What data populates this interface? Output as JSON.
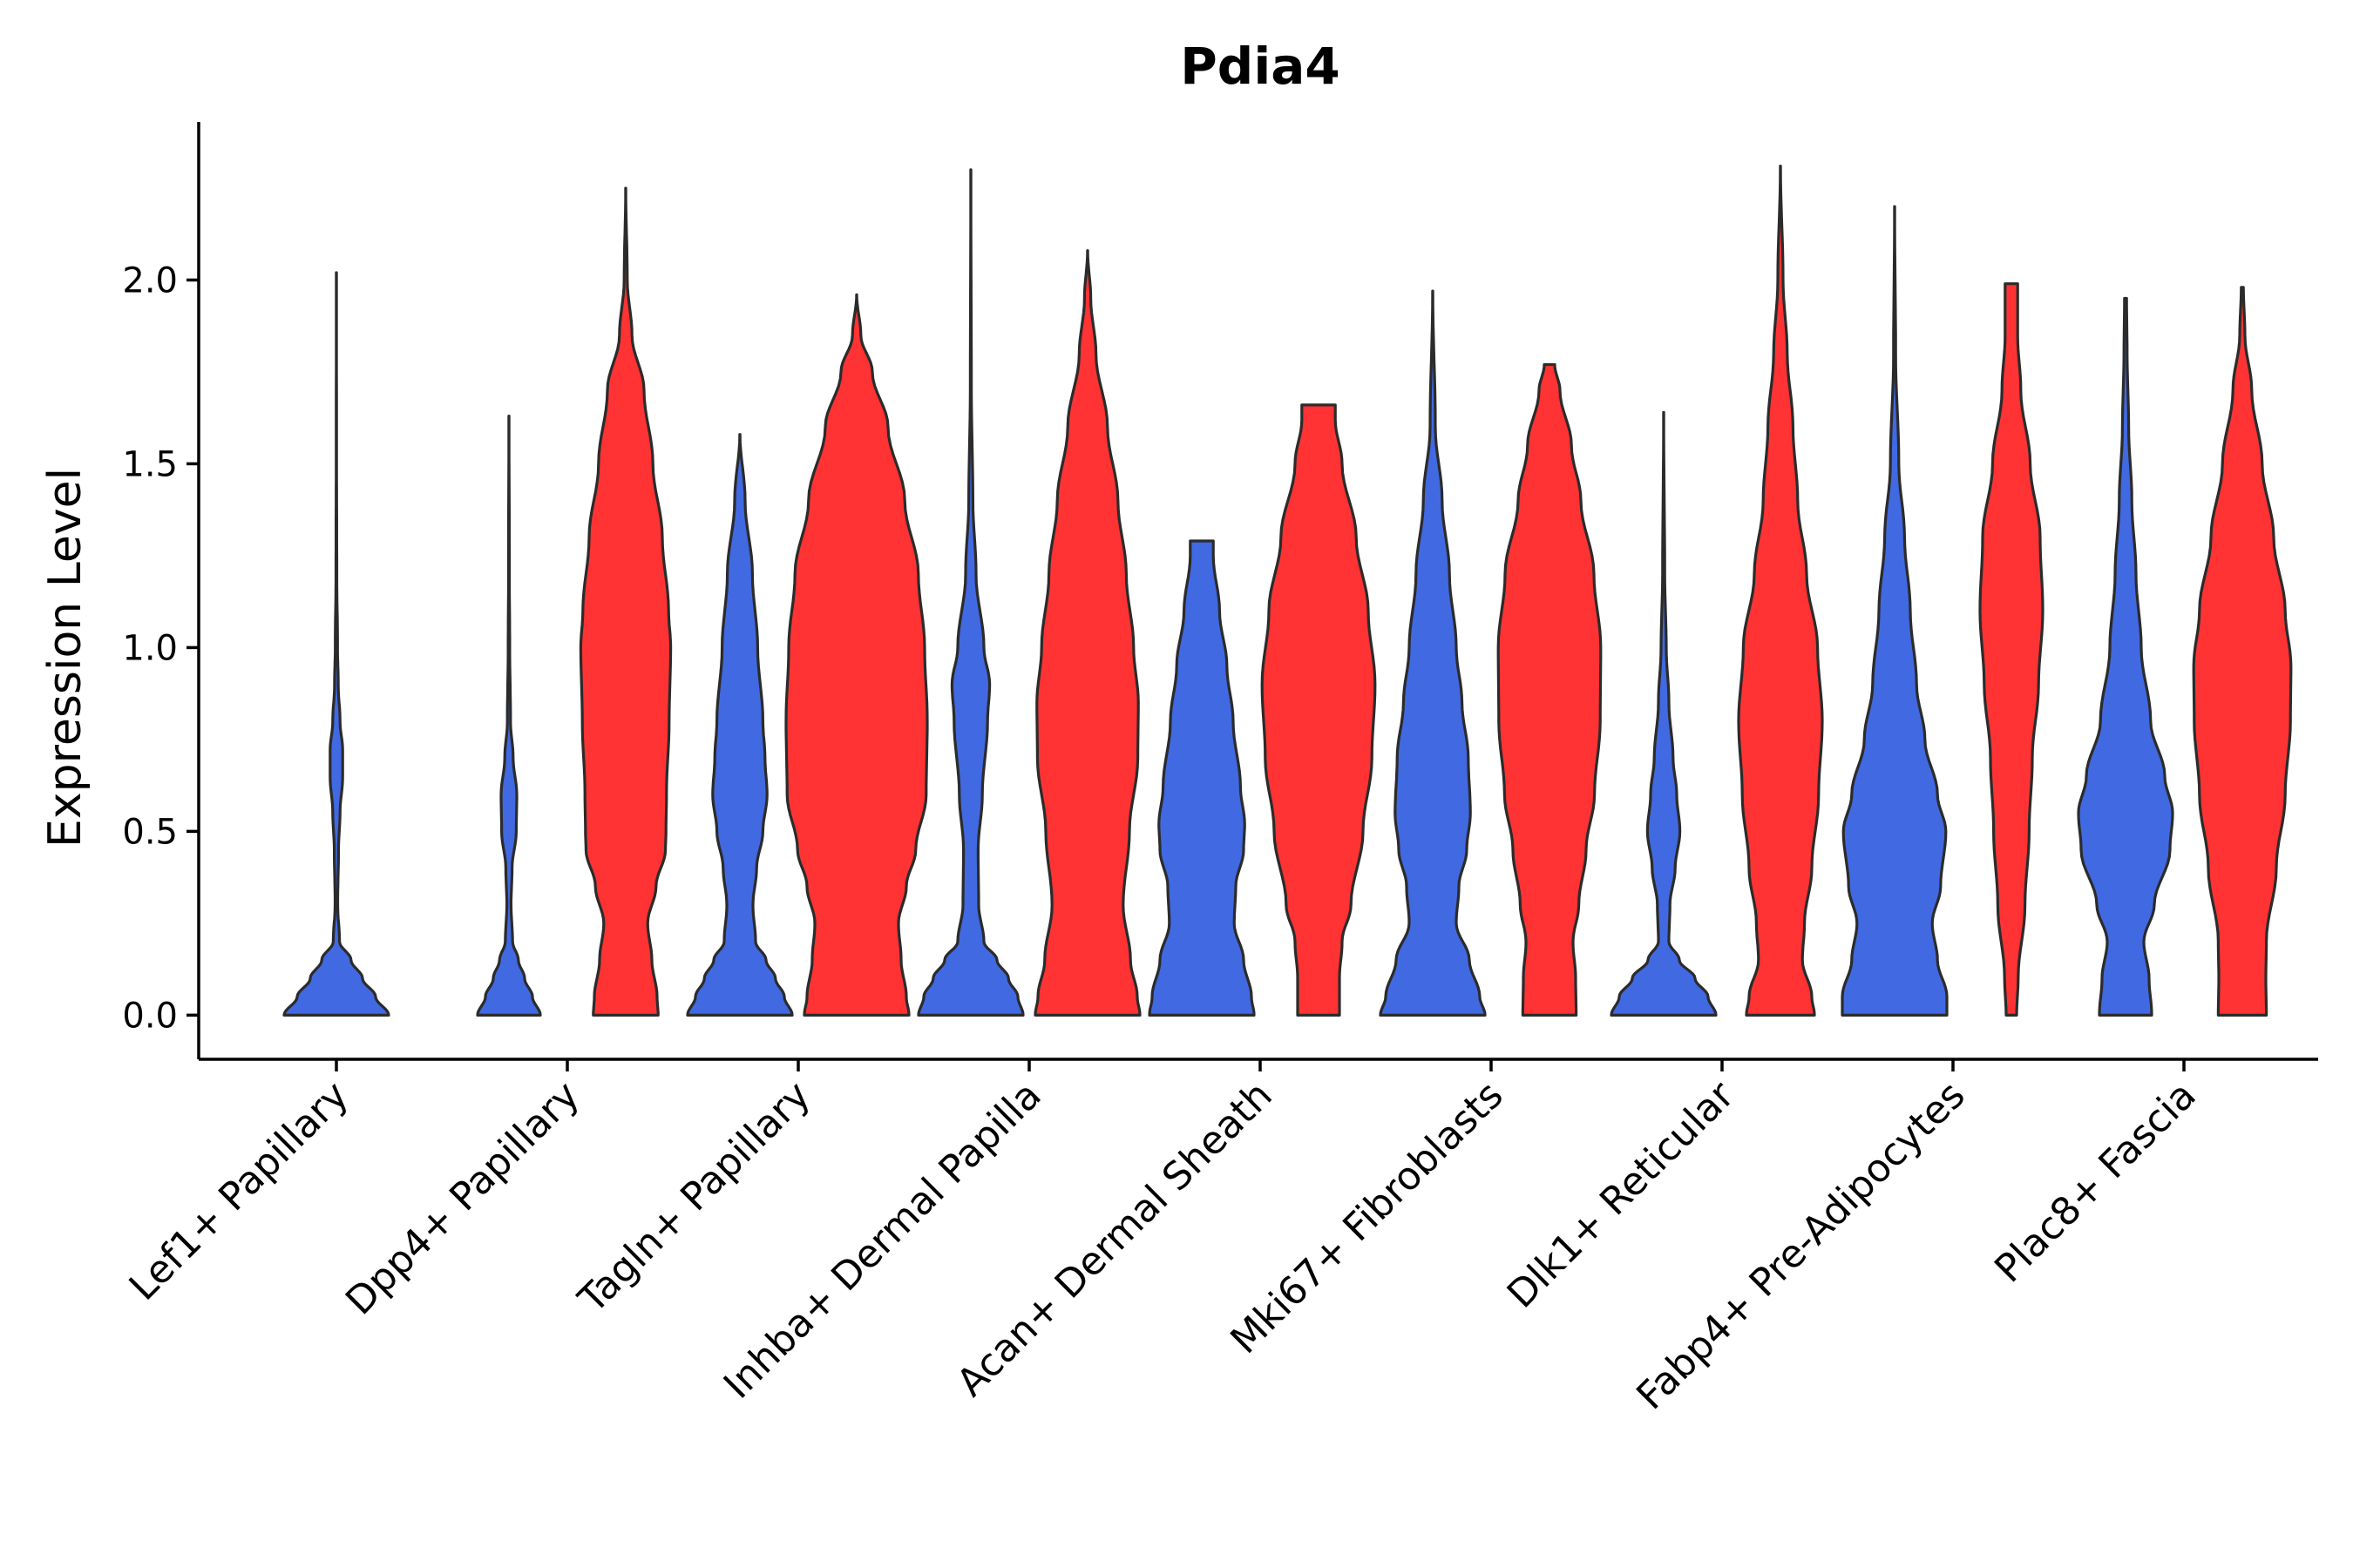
{
  "chart_data": {
    "type": "violin",
    "title": "Pdia4",
    "xlabel": "",
    "ylabel": "Expression Level",
    "ylim": [
      -0.12,
      2.43
    ],
    "yticks": [
      "0.0",
      "0.5",
      "1.0",
      "1.5",
      "2.0"
    ],
    "categories": [
      "Lef1+ Papillary",
      "Dpp4+ Papillary",
      "Tagln+ Papillary",
      "Inhba+ Dermal Papilla",
      "Acan+ Dermal Sheath",
      "Mki67+ Fibroblasts",
      "Dlk1+ Reticular",
      "Fabp4+ Pre-Adipocytes",
      "Plac8+ Fascia"
    ],
    "colors": {
      "group1": "#4169E1",
      "group2": "#FF3333"
    },
    "violins": [
      {
        "category": "Lef1+ Papillary",
        "color": "#4169E1",
        "ymin": 0,
        "ymax": 2.02,
        "profile": [
          [
            0,
            1
          ],
          [
            0.05,
            0.75
          ],
          [
            0.1,
            0.5
          ],
          [
            0.15,
            0.28
          ],
          [
            0.2,
            0.06
          ],
          [
            0.3,
            0.025
          ],
          [
            0.45,
            0.04
          ],
          [
            0.55,
            0.07
          ],
          [
            0.65,
            0.12
          ],
          [
            0.72,
            0.12
          ],
          [
            0.8,
            0.07
          ],
          [
            0.9,
            0.035
          ],
          [
            1.0,
            0.022
          ],
          [
            1.2,
            0.008
          ],
          [
            1.5,
            0.004
          ],
          [
            2.02,
            0.001
          ]
        ]
      },
      {
        "category": "Dpp4+ Papillary",
        "color": "#4169E1",
        "ymin": 0,
        "ymax": 1.63,
        "profile": [
          [
            0,
            0.6
          ],
          [
            0.05,
            0.45
          ],
          [
            0.1,
            0.3
          ],
          [
            0.15,
            0.18
          ],
          [
            0.2,
            0.07
          ],
          [
            0.3,
            0.04
          ],
          [
            0.4,
            0.06
          ],
          [
            0.5,
            0.14
          ],
          [
            0.6,
            0.15
          ],
          [
            0.7,
            0.08
          ],
          [
            0.8,
            0.03
          ],
          [
            1.0,
            0.015
          ],
          [
            1.2,
            0.008
          ],
          [
            1.63,
            0.001
          ]
        ]
      },
      {
        "category": "Dpp4+ Papillary",
        "color": "#FF3333",
        "ymin": 0,
        "ymax": 2.25,
        "profile": [
          [
            0,
            0.62
          ],
          [
            0.05,
            0.6
          ],
          [
            0.15,
            0.5
          ],
          [
            0.25,
            0.42
          ],
          [
            0.35,
            0.58
          ],
          [
            0.45,
            0.76
          ],
          [
            0.5,
            0.77
          ],
          [
            0.6,
            0.78
          ],
          [
            0.8,
            0.83
          ],
          [
            1.0,
            0.86
          ],
          [
            1.1,
            0.82
          ],
          [
            1.3,
            0.7
          ],
          [
            1.5,
            0.52
          ],
          [
            1.7,
            0.35
          ],
          [
            1.85,
            0.12
          ],
          [
            2.0,
            0.03
          ],
          [
            2.25,
            0.001
          ]
        ]
      },
      {
        "category": "Tagln+ Papillary",
        "color": "#4169E1",
        "ymin": 0,
        "ymax": 1.58,
        "profile": [
          [
            0,
            1
          ],
          [
            0.05,
            0.85
          ],
          [
            0.1,
            0.68
          ],
          [
            0.15,
            0.5
          ],
          [
            0.2,
            0.3
          ],
          [
            0.3,
            0.25
          ],
          [
            0.4,
            0.32
          ],
          [
            0.5,
            0.44
          ],
          [
            0.6,
            0.52
          ],
          [
            0.7,
            0.48
          ],
          [
            0.8,
            0.44
          ],
          [
            1.0,
            0.34
          ],
          [
            1.2,
            0.24
          ],
          [
            1.4,
            0.1
          ],
          [
            1.58,
            0.002
          ]
        ]
      },
      {
        "category": "Tagln+ Papillary",
        "color": "#FF3333",
        "ymin": 0,
        "ymax": 1.96,
        "profile": [
          [
            0,
            1
          ],
          [
            0.05,
            0.95
          ],
          [
            0.15,
            0.85
          ],
          [
            0.25,
            0.8
          ],
          [
            0.35,
            0.95
          ],
          [
            0.45,
            1.13
          ],
          [
            0.6,
            1.33
          ],
          [
            0.8,
            1.35
          ],
          [
            1.0,
            1.3
          ],
          [
            1.2,
            1.18
          ],
          [
            1.4,
            0.92
          ],
          [
            1.6,
            0.6
          ],
          [
            1.75,
            0.3
          ],
          [
            1.85,
            0.08
          ],
          [
            1.96,
            0.001
          ]
        ]
      },
      {
        "category": "Inhba+ Dermal Papilla",
        "color": "#4169E1",
        "ymin": 0,
        "ymax": 2.3,
        "profile": [
          [
            0,
            1
          ],
          [
            0.05,
            0.9
          ],
          [
            0.1,
            0.72
          ],
          [
            0.15,
            0.5
          ],
          [
            0.2,
            0.25
          ],
          [
            0.3,
            0.15
          ],
          [
            0.45,
            0.14
          ],
          [
            0.6,
            0.22
          ],
          [
            0.8,
            0.32
          ],
          [
            0.9,
            0.36
          ],
          [
            1.0,
            0.25
          ],
          [
            1.2,
            0.1
          ],
          [
            1.4,
            0.04
          ],
          [
            1.7,
            0.01
          ],
          [
            2.3,
            0.001
          ]
        ]
      },
      {
        "category": "Inhba+ Dermal Papilla",
        "color": "#FF3333",
        "ymin": 0,
        "ymax": 2.08,
        "profile": [
          [
            0,
            1
          ],
          [
            0.05,
            0.95
          ],
          [
            0.15,
            0.82
          ],
          [
            0.3,
            0.68
          ],
          [
            0.5,
            0.8
          ],
          [
            0.7,
            0.96
          ],
          [
            0.85,
            0.97
          ],
          [
            1.0,
            0.88
          ],
          [
            1.2,
            0.74
          ],
          [
            1.4,
            0.58
          ],
          [
            1.6,
            0.38
          ],
          [
            1.8,
            0.16
          ],
          [
            1.95,
            0.06
          ],
          [
            2.08,
            0.001
          ]
        ]
      },
      {
        "category": "Acan+ Dermal Sheath",
        "color": "#4169E1",
        "ymin": 0,
        "ymax": 1.29,
        "profile": [
          [
            0,
            1
          ],
          [
            0.05,
            0.95
          ],
          [
            0.15,
            0.8
          ],
          [
            0.25,
            0.62
          ],
          [
            0.35,
            0.65
          ],
          [
            0.45,
            0.8
          ],
          [
            0.52,
            0.82
          ],
          [
            0.62,
            0.74
          ],
          [
            0.8,
            0.6
          ],
          [
            0.95,
            0.48
          ],
          [
            1.1,
            0.34
          ],
          [
            1.25,
            0.22
          ],
          [
            1.29,
            0.22
          ]
        ]
      },
      {
        "category": "Acan+ Dermal Sheath",
        "color": "#FF3333",
        "ymin": 0,
        "ymax": 1.66,
        "profile": [
          [
            0,
            0.4
          ],
          [
            0.1,
            0.4
          ],
          [
            0.2,
            0.45
          ],
          [
            0.3,
            0.62
          ],
          [
            0.5,
            0.85
          ],
          [
            0.7,
            1.02
          ],
          [
            0.9,
            1.08
          ],
          [
            1.1,
            0.95
          ],
          [
            1.3,
            0.72
          ],
          [
            1.5,
            0.45
          ],
          [
            1.62,
            0.32
          ],
          [
            1.66,
            0.32
          ]
        ]
      },
      {
        "category": "Mki67+ Fibroblasts",
        "color": "#4169E1",
        "ymin": 0,
        "ymax": 1.97,
        "profile": [
          [
            0,
            1
          ],
          [
            0.05,
            0.9
          ],
          [
            0.15,
            0.7
          ],
          [
            0.25,
            0.45
          ],
          [
            0.35,
            0.5
          ],
          [
            0.45,
            0.65
          ],
          [
            0.55,
            0.72
          ],
          [
            0.7,
            0.68
          ],
          [
            0.85,
            0.56
          ],
          [
            1.0,
            0.45
          ],
          [
            1.2,
            0.32
          ],
          [
            1.4,
            0.18
          ],
          [
            1.6,
            0.05
          ],
          [
            1.97,
            0.001
          ]
        ]
      },
      {
        "category": "Mki67+ Fibroblasts",
        "color": "#FF3333",
        "ymin": 0,
        "ymax": 1.77,
        "profile": [
          [
            0,
            0.51
          ],
          [
            0.1,
            0.5
          ],
          [
            0.2,
            0.45
          ],
          [
            0.3,
            0.56
          ],
          [
            0.45,
            0.7
          ],
          [
            0.6,
            0.86
          ],
          [
            0.8,
            0.97
          ],
          [
            1.0,
            0.98
          ],
          [
            1.2,
            0.85
          ],
          [
            1.4,
            0.6
          ],
          [
            1.55,
            0.42
          ],
          [
            1.7,
            0.2
          ],
          [
            1.77,
            0.1
          ]
        ]
      },
      {
        "category": "Dlk1+ Reticular",
        "color": "#4169E1",
        "ymin": 0,
        "ymax": 1.64,
        "profile": [
          [
            0,
            1
          ],
          [
            0.05,
            0.85
          ],
          [
            0.1,
            0.6
          ],
          [
            0.15,
            0.3
          ],
          [
            0.2,
            0.1
          ],
          [
            0.3,
            0.12
          ],
          [
            0.4,
            0.22
          ],
          [
            0.5,
            0.31
          ],
          [
            0.6,
            0.25
          ],
          [
            0.7,
            0.18
          ],
          [
            0.85,
            0.1
          ],
          [
            1.0,
            0.05
          ],
          [
            1.2,
            0.02
          ],
          [
            1.64,
            0.001
          ]
        ]
      },
      {
        "category": "Dlk1+ Reticular",
        "color": "#FF3333",
        "ymin": 0,
        "ymax": 2.31,
        "profile": [
          [
            0,
            0.65
          ],
          [
            0.05,
            0.6
          ],
          [
            0.15,
            0.42
          ],
          [
            0.25,
            0.46
          ],
          [
            0.4,
            0.6
          ],
          [
            0.6,
            0.73
          ],
          [
            0.8,
            0.8
          ],
          [
            1.0,
            0.71
          ],
          [
            1.2,
            0.5
          ],
          [
            1.4,
            0.33
          ],
          [
            1.6,
            0.24
          ],
          [
            1.8,
            0.13
          ],
          [
            2.0,
            0.05
          ],
          [
            2.31,
            0.001
          ]
        ]
      },
      {
        "category": "Fabp4+ Pre-Adipocytes",
        "color": "#4169E1",
        "ymin": 0,
        "ymax": 2.2,
        "profile": [
          [
            0,
            1
          ],
          [
            0.05,
            1.0
          ],
          [
            0.15,
            0.82
          ],
          [
            0.25,
            0.72
          ],
          [
            0.35,
            0.88
          ],
          [
            0.5,
            0.98
          ],
          [
            0.6,
            0.82
          ],
          [
            0.75,
            0.58
          ],
          [
            0.9,
            0.42
          ],
          [
            1.1,
            0.3
          ],
          [
            1.3,
            0.19
          ],
          [
            1.5,
            0.08
          ],
          [
            1.8,
            0.02
          ],
          [
            2.2,
            0.001
          ]
        ]
      },
      {
        "category": "Fabp4+ Pre-Adipocytes",
        "color": "#FF3333",
        "ymin": 0,
        "ymax": 1.99,
        "profile": [
          [
            0,
            0.1
          ],
          [
            0.1,
            0.13
          ],
          [
            0.3,
            0.26
          ],
          [
            0.5,
            0.34
          ],
          [
            0.7,
            0.4
          ],
          [
            0.9,
            0.52
          ],
          [
            1.1,
            0.6
          ],
          [
            1.3,
            0.55
          ],
          [
            1.5,
            0.36
          ],
          [
            1.7,
            0.18
          ],
          [
            1.85,
            0.12
          ],
          [
            1.99,
            0.12
          ]
        ]
      },
      {
        "category": "Plac8+ Fascia",
        "color": "#4169E1",
        "ymin": 0,
        "ymax": 1.95,
        "profile": [
          [
            0,
            0.5
          ],
          [
            0.1,
            0.45
          ],
          [
            0.2,
            0.35
          ],
          [
            0.3,
            0.55
          ],
          [
            0.45,
            0.85
          ],
          [
            0.55,
            0.9
          ],
          [
            0.65,
            0.75
          ],
          [
            0.8,
            0.48
          ],
          [
            1.0,
            0.3
          ],
          [
            1.2,
            0.2
          ],
          [
            1.4,
            0.12
          ],
          [
            1.6,
            0.06
          ],
          [
            1.8,
            0.03
          ],
          [
            1.95,
            0.02
          ]
        ]
      },
      {
        "category": "Plac8+ Fascia",
        "color": "#FF3333",
        "ymin": 0,
        "ymax": 1.98,
        "profile": [
          [
            0,
            0.46
          ],
          [
            0.1,
            0.45
          ],
          [
            0.2,
            0.46
          ],
          [
            0.4,
            0.65
          ],
          [
            0.6,
            0.82
          ],
          [
            0.8,
            0.92
          ],
          [
            0.95,
            0.93
          ],
          [
            1.1,
            0.82
          ],
          [
            1.3,
            0.6
          ],
          [
            1.5,
            0.38
          ],
          [
            1.7,
            0.18
          ],
          [
            1.85,
            0.05
          ],
          [
            1.98,
            0.02
          ]
        ]
      }
    ]
  }
}
